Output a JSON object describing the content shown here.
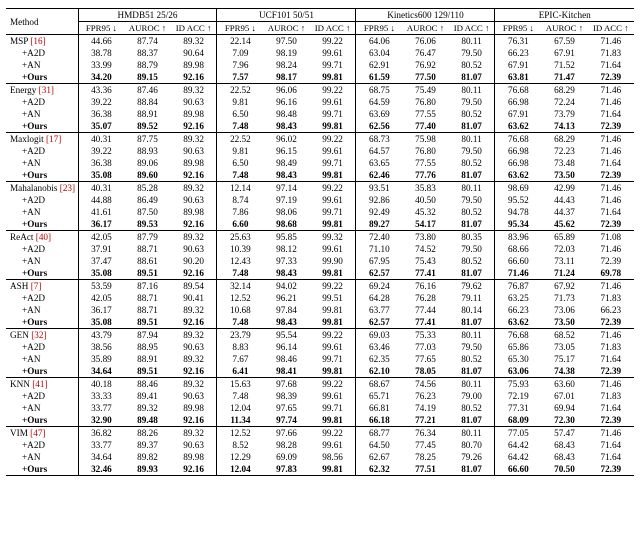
{
  "header": {
    "method_label": "Method",
    "datasets": [
      {
        "name": "HMDB51 25/26"
      },
      {
        "name": "UCF101 50/51"
      },
      {
        "name": "Kinetics600 129/110"
      },
      {
        "name": "EPIC-Kitchen"
      }
    ],
    "metrics": [
      "FPR95 ↓",
      "AUROC ↑",
      "ID ACC ↑"
    ]
  },
  "groups": [
    {
      "base": {
        "name": "MSP",
        "ref": "[16]"
      },
      "rows": [
        [
          "44.66",
          "87.74",
          "89.32",
          "22.14",
          "97.50",
          "99.22",
          "64.06",
          "76.06",
          "80.11",
          "76.31",
          "67.59",
          "71.46"
        ],
        [
          "38.78",
          "88.37",
          "90.64",
          "7.09",
          "98.19",
          "99.61",
          "63.04",
          "76.47",
          "79.50",
          "66.23",
          "67.91",
          "71.83"
        ],
        [
          "33.99",
          "88.79",
          "89.98",
          "7.96",
          "98.24",
          "99.71",
          "62.91",
          "76.92",
          "80.52",
          "67.91",
          "71.52",
          "71.64"
        ],
        [
          "34.20",
          "89.15",
          "92.16",
          "7.57",
          "98.17",
          "99.81",
          "61.59",
          "77.50",
          "81.07",
          "63.81",
          "71.47",
          "72.39"
        ]
      ]
    },
    {
      "base": {
        "name": "Energy",
        "ref": "[31]"
      },
      "rows": [
        [
          "43.36",
          "87.46",
          "89.32",
          "22.52",
          "96.06",
          "99.22",
          "68.75",
          "75.49",
          "80.11",
          "76.68",
          "68.29",
          "71.46"
        ],
        [
          "39.22",
          "88.84",
          "90.63",
          "9.81",
          "96.16",
          "99.61",
          "64.59",
          "76.80",
          "79.50",
          "66.98",
          "72.24",
          "71.46"
        ],
        [
          "36.38",
          "88.91",
          "89.98",
          "6.50",
          "98.48",
          "99.71",
          "63.69",
          "77.55",
          "80.52",
          "67.91",
          "73.79",
          "71.64"
        ],
        [
          "35.07",
          "89.52",
          "92.16",
          "7.48",
          "98.43",
          "99.81",
          "62.56",
          "77.40",
          "81.07",
          "63.62",
          "74.13",
          "72.39"
        ]
      ]
    },
    {
      "base": {
        "name": "Maxlogit",
        "ref": "[17]"
      },
      "rows": [
        [
          "40.31",
          "87.75",
          "89.32",
          "22.52",
          "96.02",
          "99.22",
          "68.73",
          "75.98",
          "80.11",
          "76.68",
          "68.29",
          "71.46"
        ],
        [
          "39.22",
          "88.93",
          "90.63",
          "9.81",
          "96.15",
          "99.61",
          "64.57",
          "76.80",
          "79.50",
          "66.98",
          "72.23",
          "71.46"
        ],
        [
          "36.38",
          "89.06",
          "89.98",
          "6.50",
          "98.49",
          "99.71",
          "63.65",
          "77.55",
          "80.52",
          "66.98",
          "73.48",
          "71.64"
        ],
        [
          "35.08",
          "89.60",
          "92.16",
          "7.48",
          "98.43",
          "99.81",
          "62.46",
          "77.76",
          "81.07",
          "63.62",
          "73.50",
          "72.39"
        ]
      ]
    },
    {
      "base": {
        "name": "Mahalanobis",
        "ref": "[23]"
      },
      "rows": [
        [
          "40.31",
          "85.28",
          "89.32",
          "12.14",
          "97.14",
          "99.22",
          "93.51",
          "35.83",
          "80.11",
          "98.69",
          "42.99",
          "71.46"
        ],
        [
          "44.88",
          "86.49",
          "90.63",
          "8.74",
          "97.19",
          "99.61",
          "92.86",
          "40.50",
          "79.50",
          "95.52",
          "44.43",
          "71.46"
        ],
        [
          "41.61",
          "87.50",
          "89.98",
          "7.86",
          "98.06",
          "99.71",
          "92.49",
          "45.32",
          "80.52",
          "94.78",
          "44.37",
          "71.64"
        ],
        [
          "36.17",
          "89.53",
          "92.16",
          "6.60",
          "98.68",
          "99.81",
          "89.27",
          "54.17",
          "81.07",
          "95.34",
          "45.62",
          "72.39"
        ]
      ]
    },
    {
      "base": {
        "name": "ReAct",
        "ref": "[40]"
      },
      "rows": [
        [
          "42.05",
          "87.79",
          "89.32",
          "25.63",
          "95.85",
          "99.32",
          "72.40",
          "73.80",
          "80.35",
          "83.96",
          "65.89",
          "71.08"
        ],
        [
          "37.91",
          "88.71",
          "90.63",
          "10.39",
          "98.12",
          "99.61",
          "71.10",
          "74.52",
          "79.50",
          "68.66",
          "72.03",
          "71.46"
        ],
        [
          "37.47",
          "88.61",
          "90.20",
          "12.43",
          "97.33",
          "99.90",
          "67.95",
          "75.43",
          "80.52",
          "66.60",
          "73.11",
          "72.39"
        ],
        [
          "35.08",
          "89.51",
          "92.16",
          "7.48",
          "98.43",
          "99.81",
          "62.57",
          "77.41",
          "81.07",
          "71.46",
          "71.24",
          "69.78"
        ]
      ]
    },
    {
      "base": {
        "name": "ASH",
        "ref": "[7]"
      },
      "rows": [
        [
          "53.59",
          "87.16",
          "89.54",
          "32.14",
          "94.02",
          "99.22",
          "69.24",
          "76.16",
          "79.62",
          "76.87",
          "67.92",
          "71.46"
        ],
        [
          "42.05",
          "88.71",
          "90.41",
          "12.52",
          "96.21",
          "99.51",
          "64.28",
          "76.28",
          "79.11",
          "63.25",
          "71.73",
          "71.83"
        ],
        [
          "36.17",
          "88.71",
          "89.32",
          "10.68",
          "97.84",
          "99.81",
          "63.77",
          "77.44",
          "80.14",
          "66.23",
          "73.06",
          "66.23"
        ],
        [
          "35.08",
          "89.51",
          "92.16",
          "7.48",
          "98.43",
          "99.81",
          "62.57",
          "77.41",
          "81.07",
          "63.62",
          "73.50",
          "72.39"
        ]
      ]
    },
    {
      "base": {
        "name": "GEN",
        "ref": "[32]"
      },
      "rows": [
        [
          "43.79",
          "87.94",
          "89.32",
          "23.79",
          "95.54",
          "99.22",
          "69.03",
          "75.33",
          "80.11",
          "76.68",
          "68.52",
          "71.46"
        ],
        [
          "38.56",
          "88.95",
          "90.63",
          "8.83",
          "96.14",
          "99.61",
          "63.46",
          "77.03",
          "79.50",
          "65.86",
          "73.05",
          "71.83"
        ],
        [
          "35.89",
          "88.91",
          "89.32",
          "7.67",
          "98.46",
          "99.71",
          "62.35",
          "77.65",
          "80.52",
          "65.30",
          "75.17",
          "71.64"
        ],
        [
          "34.64",
          "89.51",
          "92.16",
          "6.41",
          "98.41",
          "99.81",
          "62.10",
          "78.05",
          "81.07",
          "63.06",
          "74.38",
          "72.39"
        ]
      ]
    },
    {
      "base": {
        "name": "KNN",
        "ref": "[41]"
      },
      "rows": [
        [
          "40.18",
          "88.46",
          "89.32",
          "15.63",
          "97.68",
          "99.22",
          "68.67",
          "74.56",
          "80.11",
          "75.93",
          "63.60",
          "71.46"
        ],
        [
          "33.33",
          "89.41",
          "90.63",
          "7.48",
          "98.39",
          "99.61",
          "65.71",
          "76.23",
          "79.00",
          "72.19",
          "67.01",
          "71.83"
        ],
        [
          "33.77",
          "89.32",
          "89.98",
          "12.04",
          "97.65",
          "99.71",
          "66.81",
          "74.19",
          "80.52",
          "77.31",
          "69.94",
          "71.64"
        ],
        [
          "32.90",
          "89.48",
          "92.16",
          "11.34",
          "97.74",
          "99.81",
          "66.18",
          "77.21",
          "81.07",
          "68.09",
          "72.30",
          "72.39"
        ]
      ]
    },
    {
      "base": {
        "name": "VIM",
        "ref": "[47]"
      },
      "rows": [
        [
          "36.82",
          "88.26",
          "89.32",
          "12.52",
          "97.66",
          "99.22",
          "68.77",
          "76.34",
          "80.11",
          "77.05",
          "57.47",
          "71.46"
        ],
        [
          "33.77",
          "89.37",
          "90.63",
          "8.52",
          "98.28",
          "99.61",
          "64.50",
          "77.45",
          "80.70",
          "64.42",
          "68.43",
          "71.64"
        ],
        [
          "34.64",
          "89.82",
          "89.98",
          "12.29",
          "69.09",
          "98.56",
          "62.67",
          "78.25",
          "79.26",
          "64.42",
          "68.43",
          "71.64"
        ],
        [
          "32.46",
          "89.93",
          "92.16",
          "12.04",
          "97.83",
          "99.81",
          "62.32",
          "77.51",
          "81.07",
          "66.60",
          "70.50",
          "72.39"
        ]
      ]
    }
  ],
  "variants": [
    "+A2D",
    "+AN",
    "+Ours"
  ],
  "colors": {
    "ref": "#b00",
    "rule": "#000",
    "bg": "#ffffff"
  },
  "fonts": {
    "family": "Times New Roman",
    "base_size_pt": 9.2,
    "bold_weight": 700
  }
}
